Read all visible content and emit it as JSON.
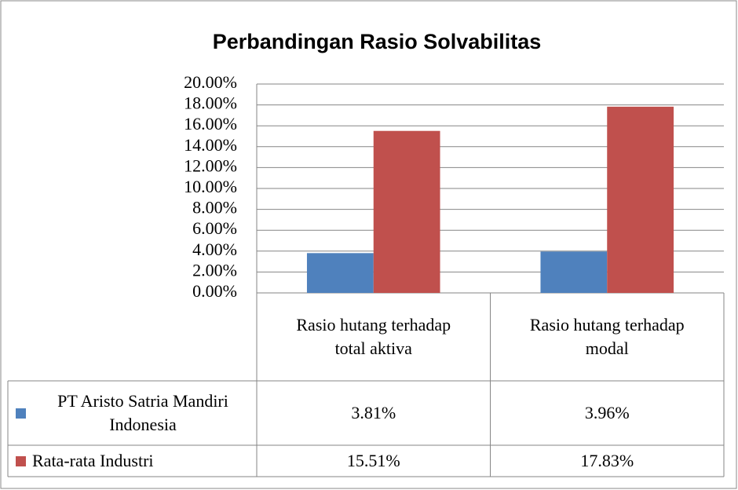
{
  "chart_data": {
    "type": "bar",
    "title": "Perbandingan Rasio Solvabilitas",
    "categories": [
      "Rasio hutang terhadap total aktiva",
      "Rasio hutang terhadap modal"
    ],
    "series": [
      {
        "name": "PT Aristo Satria Mandiri Indonesia",
        "color": "#4f81bd",
        "values": [
          3.81,
          3.96
        ],
        "value_labels": [
          "3.81%",
          "3.96%"
        ]
      },
      {
        "name": "Rata-rata Industri",
        "color": "#c0504d",
        "values": [
          15.51,
          17.83
        ],
        "value_labels": [
          "15.51%",
          "17.83%"
        ]
      }
    ],
    "ylim": [
      0,
      20
    ],
    "yticks": [
      {
        "value": 0,
        "label": "0.00%"
      },
      {
        "value": 2,
        "label": "2.00%"
      },
      {
        "value": 4,
        "label": "4.00%"
      },
      {
        "value": 6,
        "label": "6.00%"
      },
      {
        "value": 8,
        "label": "8.00%"
      },
      {
        "value": 10,
        "label": "10.00%"
      },
      {
        "value": 12,
        "label": "12.00%"
      },
      {
        "value": 14,
        "label": "14.00%"
      },
      {
        "value": 16,
        "label": "16.00%"
      },
      {
        "value": 18,
        "label": "18.00%"
      },
      {
        "value": 20,
        "label": "20.00%"
      }
    ],
    "grid": true,
    "data_table": true
  }
}
